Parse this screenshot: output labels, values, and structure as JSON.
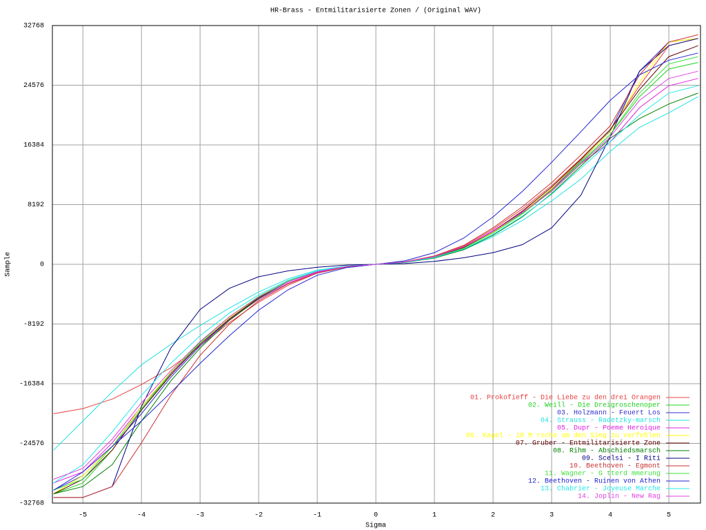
{
  "chart_data": {
    "type": "line",
    "title": "HR-Brass - Entmilitarisierte Zonen / (Original WAV)",
    "x_label": "Sigma",
    "y_label": "Sample",
    "x": [
      -5.5,
      -5,
      -4.5,
      -4,
      -3.5,
      -3,
      -2.5,
      -2,
      -1.5,
      -1,
      -0.5,
      0,
      0.5,
      1,
      1.5,
      2,
      2.5,
      3,
      3.5,
      4,
      4.5,
      5,
      5.5
    ],
    "xlim": [
      -5.52,
      5.54
    ],
    "xticks": [
      -5,
      -4,
      -3,
      -2,
      -1,
      0,
      1,
      2,
      3,
      4,
      5
    ],
    "ylim": [
      -32768,
      32768
    ],
    "yticks": [
      -32768,
      -24576,
      -16384,
      -8192,
      0,
      8192,
      16384,
      24576,
      32768
    ],
    "grid": true,
    "legend": "bottom-right",
    "series": [
      {
        "name": "01. Prokofieff - Die Liebe zu den drei Orangen",
        "color": "#e84040",
        "values": [
          -20500,
          -19800,
          -18500,
          -16500,
          -14200,
          -11200,
          -8000,
          -5200,
          -2900,
          -1200,
          -350,
          0,
          350,
          1100,
          2500,
          4800,
          7600,
          10800,
          14500,
          18500,
          24500,
          30000,
          31000
        ]
      },
      {
        "name": "02. Weill - Die Dreigroschenoper",
        "color": "#20d020",
        "values": [
          -31500,
          -30000,
          -25500,
          -20000,
          -15000,
          -10800,
          -7300,
          -4500,
          -2300,
          -950,
          -300,
          0,
          300,
          950,
          2200,
          4350,
          7000,
          10200,
          14000,
          17800,
          23000,
          26800,
          27700
        ]
      },
      {
        "name": "03. Holzmann - Feuert Los",
        "color": "#3030d0",
        "values": [
          -31000,
          -29000,
          -25000,
          -20500,
          -15500,
          -11200,
          -7600,
          -4700,
          -2400,
          -1000,
          -310,
          0,
          320,
          1000,
          2300,
          4400,
          7100,
          10300,
          14200,
          18300,
          26500,
          30500,
          31000
        ]
      },
      {
        "name": "04. Strauss - Radetzky-marsch",
        "color": "#20e0e0",
        "values": [
          -25500,
          -21500,
          -17500,
          -13800,
          -11000,
          -8400,
          -6000,
          -3800,
          -2000,
          -800,
          -250,
          0,
          280,
          900,
          2000,
          3800,
          6000,
          8700,
          11700,
          15500,
          18800,
          20800,
          23000
        ]
      },
      {
        "name": "05. Dupr  - Poeme Heroique",
        "color": "#e020e0",
        "values": [
          -30000,
          -28500,
          -24500,
          -19500,
          -15000,
          -11000,
          -7600,
          -4800,
          -2600,
          -1100,
          -330,
          0,
          330,
          1050,
          2400,
          4600,
          7200,
          10300,
          13800,
          16800,
          21500,
          24500,
          25500
        ]
      },
      {
        "name": "06. Kagel - 10 M rsche um den Sieg zu verfehlen",
        "color": "#ffff00",
        "values": [
          -31500,
          -29000,
          -25000,
          -19500,
          -14800,
          -10700,
          -7300,
          -4500,
          -2300,
          -950,
          -300,
          0,
          310,
          980,
          2250,
          4400,
          7100,
          10400,
          14300,
          18200,
          25000,
          30500,
          31000
        ]
      },
      {
        "name": "07. Gruber - Entmilitarisierte Zone",
        "color": "#600000",
        "values": [
          -31500,
          -29500,
          -25500,
          -20000,
          -15200,
          -11000,
          -7500,
          -4600,
          -2400,
          -1000,
          -310,
          0,
          300,
          1000,
          2300,
          4500,
          7300,
          10600,
          14400,
          18500,
          24000,
          28500,
          30000
        ]
      },
      {
        "name": "08. Rihm - Abschiedsmarsch",
        "color": "#008000",
        "values": [
          -31500,
          -30500,
          -27500,
          -21500,
          -16000,
          -11500,
          -7700,
          -4700,
          -2400,
          -950,
          -280,
          0,
          260,
          850,
          2000,
          4000,
          6500,
          9700,
          13500,
          17300,
          20000,
          22000,
          23500
        ]
      },
      {
        "name": "09. Scelsi - I Riti",
        "color": "#000080",
        "values": [
          -32000,
          -32000,
          -30500,
          -19500,
          -11500,
          -6200,
          -3300,
          -1700,
          -900,
          -400,
          -100,
          0,
          100,
          400,
          900,
          1600,
          2700,
          5000,
          9500,
          17500,
          26500,
          30000,
          31000
        ]
      },
      {
        "name": "10. Beethoven - Egmont",
        "color": "#c83030",
        "values": [
          -32000,
          -32000,
          -30500,
          -24500,
          -18000,
          -12500,
          -8200,
          -5000,
          -2700,
          -1200,
          -350,
          0,
          350,
          1150,
          2600,
          5000,
          7900,
          11200,
          15000,
          19000,
          26000,
          30500,
          31500
        ]
      },
      {
        "name": "11. Wagner - G tterd mmerung",
        "color": "#40e040",
        "values": [
          -31000,
          -29500,
          -25000,
          -19800,
          -14900,
          -10700,
          -7200,
          -4400,
          -2300,
          -950,
          -290,
          0,
          300,
          960,
          2200,
          4300,
          6900,
          10100,
          13900,
          17800,
          23500,
          27500,
          28500
        ]
      },
      {
        "name": "12. Beethoven - Ruinen von Athen",
        "color": "#2020d0",
        "values": [
          -31000,
          -28500,
          -25000,
          -21500,
          -17600,
          -13600,
          -9800,
          -6300,
          -3500,
          -1500,
          -450,
          0,
          480,
          1600,
          3600,
          6500,
          10000,
          14000,
          18200,
          22500,
          26000,
          28000,
          29000
        ]
      },
      {
        "name": "13. Chabrier - Joyeuse Marche",
        "color": "#20e8e8",
        "values": [
          -30000,
          -27500,
          -23000,
          -18000,
          -13600,
          -9800,
          -6700,
          -4200,
          -2200,
          -900,
          -280,
          0,
          290,
          930,
          2100,
          4100,
          6600,
          9600,
          13200,
          16800,
          20500,
          23500,
          24500
        ]
      },
      {
        "name": "14. Joplin - New Rag",
        "color": "#e040e0",
        "values": [
          -29500,
          -28000,
          -24000,
          -19000,
          -14600,
          -10600,
          -7200,
          -4500,
          -2400,
          -1000,
          -310,
          0,
          330,
          1050,
          2400,
          4500,
          7100,
          10000,
          13800,
          17500,
          22500,
          25500,
          26500
        ]
      }
    ]
  }
}
